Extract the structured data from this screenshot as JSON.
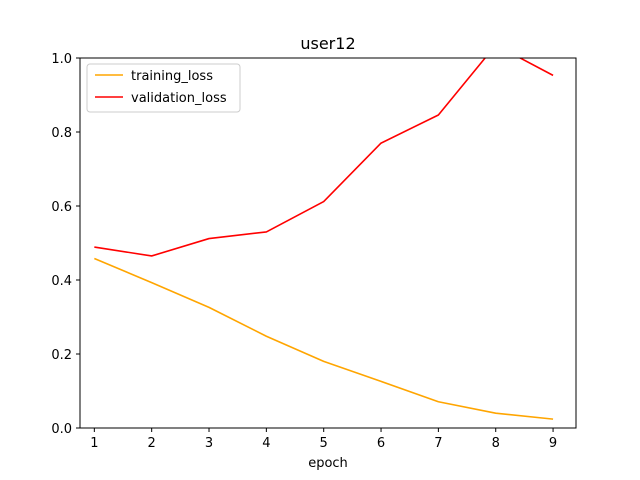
{
  "chart_data": {
    "type": "line",
    "title": "user12",
    "xlabel": "epoch",
    "ylabel": "",
    "x": [
      1,
      2,
      3,
      4,
      5,
      6,
      7,
      8,
      9
    ],
    "xlim": [
      0.75,
      9.4
    ],
    "ylim": [
      0.0,
      1.0
    ],
    "xticks": [
      "1",
      "2",
      "3",
      "4",
      "5",
      "6",
      "7",
      "8",
      "9"
    ],
    "yticks": [
      "0.0",
      "0.2",
      "0.4",
      "0.6",
      "0.8",
      "1.0"
    ],
    "grid": false,
    "legend_position": "top-left",
    "series": [
      {
        "name": "training_loss",
        "color": "#ffa500",
        "values": [
          0.458,
          0.393,
          0.326,
          0.248,
          0.18,
          0.126,
          0.071,
          0.04,
          0.024
        ]
      },
      {
        "name": "validation_loss",
        "color": "#ff0000",
        "values": [
          0.489,
          0.465,
          0.512,
          0.53,
          0.612,
          0.77,
          0.846,
          1.035,
          0.953
        ]
      }
    ]
  }
}
